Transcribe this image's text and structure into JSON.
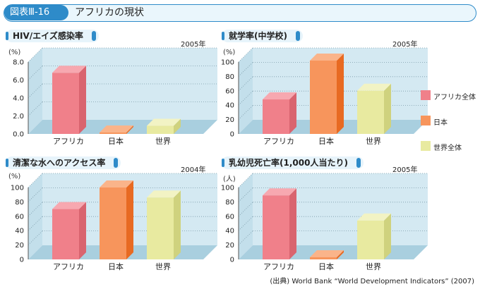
{
  "header": {
    "badge": "図表Ⅲ-16",
    "title": "アフリカの現状"
  },
  "legend": [
    {
      "label": "アフリカ全体",
      "color": "#f0808a"
    },
    {
      "label": "日本",
      "color": "#f7955c"
    },
    {
      "label": "世界全体",
      "color": "#e8eaa0"
    }
  ],
  "chart_data": [
    {
      "type": "bar",
      "title": "HIV/エイズ感染率",
      "year": "2005年",
      "unit": "(%)",
      "categories": [
        "アフリカ",
        "日本",
        "世界"
      ],
      "values": [
        6.8,
        0.1,
        0.9
      ],
      "ylim": [
        0,
        8
      ],
      "yticks": [
        "0.0",
        "2.0",
        "4.0",
        "6.0",
        "8.0"
      ]
    },
    {
      "type": "bar",
      "title": "就学率(中学校)",
      "year": "2005年",
      "unit": "(%)",
      "categories": [
        "アフリカ",
        "日本",
        "世界"
      ],
      "values": [
        48,
        102,
        60
      ],
      "ylim": [
        0,
        100
      ],
      "yticks": [
        "0",
        "20",
        "40",
        "60",
        "80",
        "100"
      ]
    },
    {
      "type": "bar",
      "title": "清潔な水へのアクセス率",
      "year": "2004年",
      "unit": "(%)",
      "categories": [
        "アフリカ",
        "日本",
        "世界"
      ],
      "values": [
        70,
        100,
        86
      ],
      "ylim": [
        0,
        100
      ],
      "yticks": [
        "0",
        "20",
        "40",
        "60",
        "80",
        "100"
      ]
    },
    {
      "type": "bar",
      "title": "乳幼児死亡率(1,000人当たり)",
      "year": "2005年",
      "unit": "(人)",
      "categories": [
        "アフリカ",
        "日本",
        "世界"
      ],
      "values": [
        89,
        3,
        54
      ],
      "ylim": [
        0,
        100
      ],
      "yticks": [
        "0",
        "20",
        "40",
        "60",
        "80",
        "100"
      ]
    }
  ],
  "source": "(出典) World Bank “World Development Indicators” (2007)"
}
